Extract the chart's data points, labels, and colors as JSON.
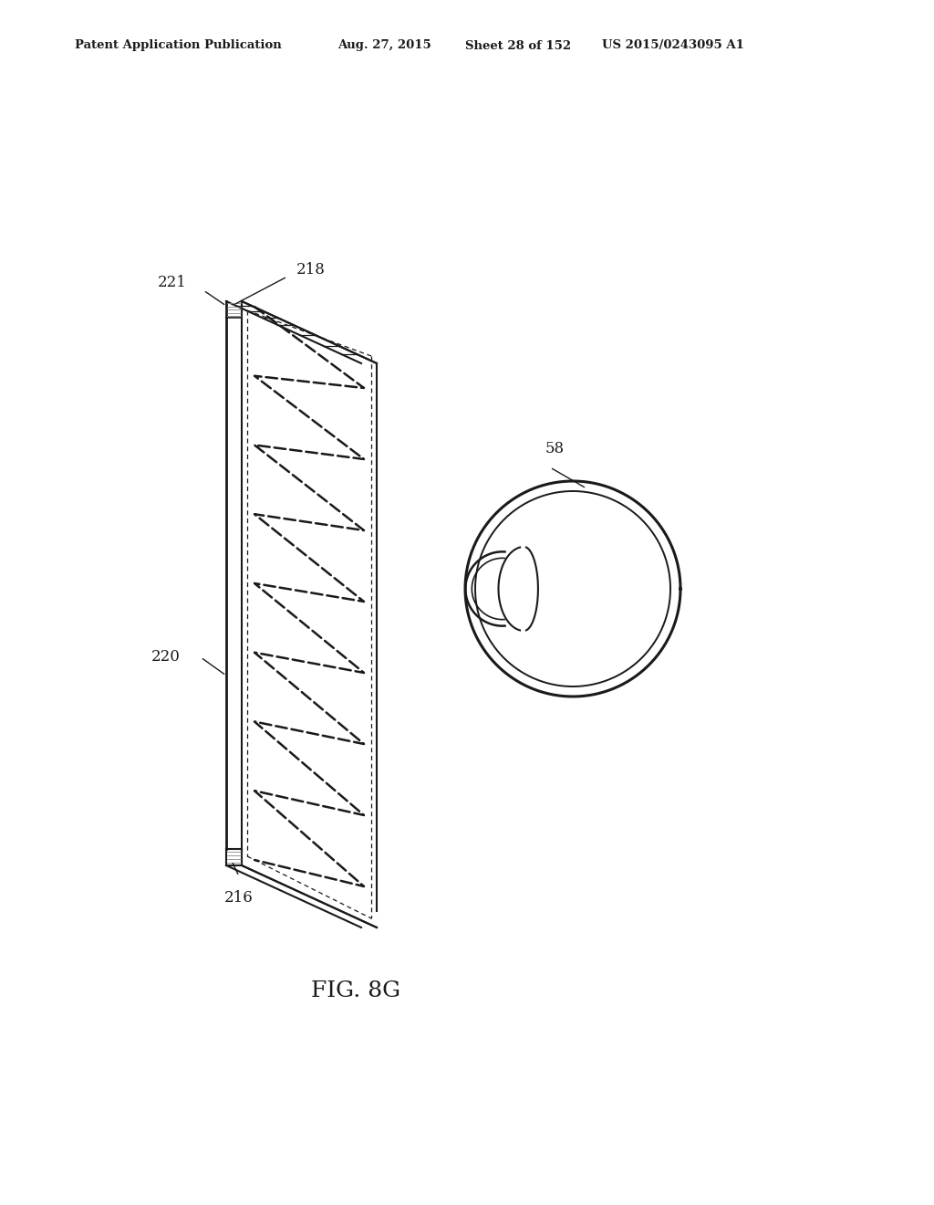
{
  "bg_color": "#ffffff",
  "header_text": "Patent Application Publication",
  "header_date": "Aug. 27, 2015",
  "header_sheet": "Sheet 28 of 152",
  "header_patent": "US 2015/0243095 A1",
  "fig_label": "FIG. 8G",
  "label_218": "218",
  "label_221": "221",
  "label_220": "220",
  "label_216": "216",
  "label_58": "58"
}
